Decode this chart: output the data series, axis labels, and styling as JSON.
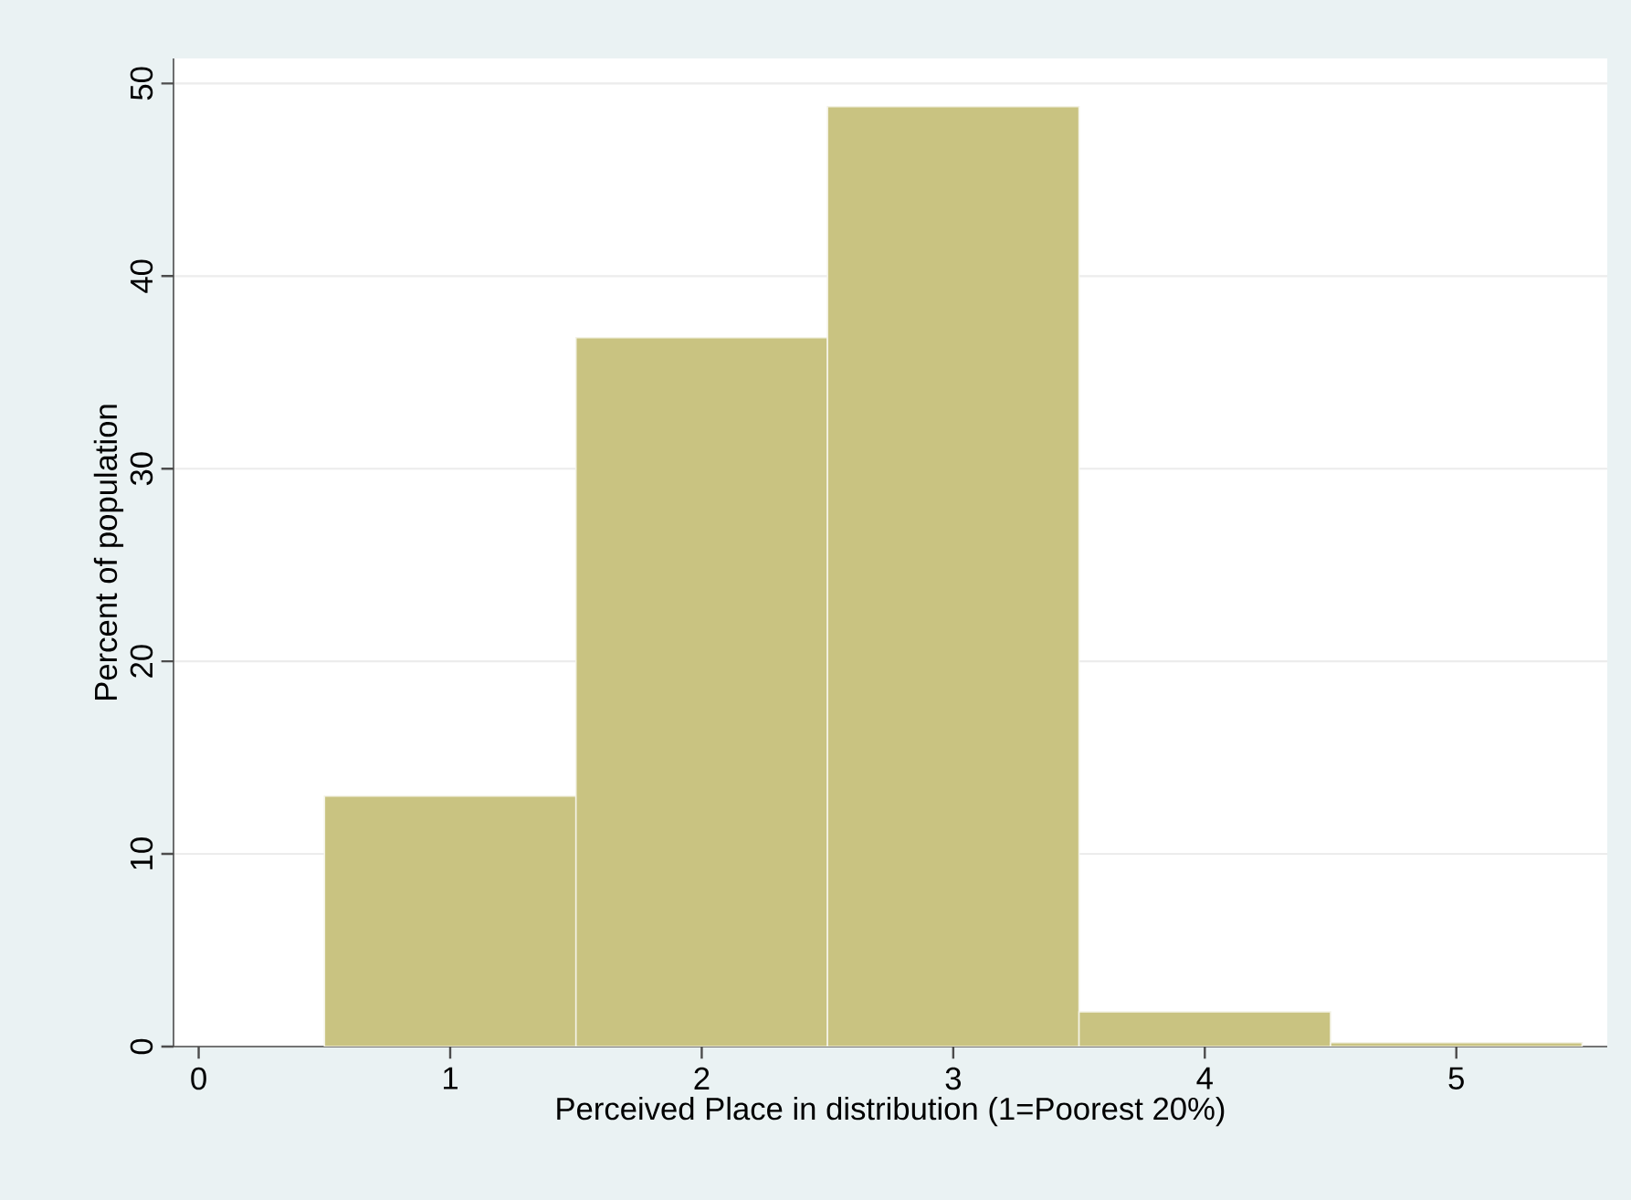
{
  "chart_data": {
    "type": "histogram",
    "xlabel": "Perceived Place in distribution (1=Poorest 20%)",
    "ylabel": "Percent of population",
    "bins": [
      0.5,
      1.5,
      2.5,
      3.5,
      4.5,
      5.5
    ],
    "values": [
      13.0,
      36.8,
      48.8,
      1.8,
      0.2
    ],
    "color": "#c9c381",
    "xlim": [
      -0.1,
      5.6
    ],
    "ylim": [
      0,
      51.3
    ],
    "xticks": [
      0,
      1,
      2,
      3,
      4,
      5
    ],
    "yticks": [
      0,
      10,
      20,
      30,
      40,
      50
    ],
    "grid": "y"
  }
}
